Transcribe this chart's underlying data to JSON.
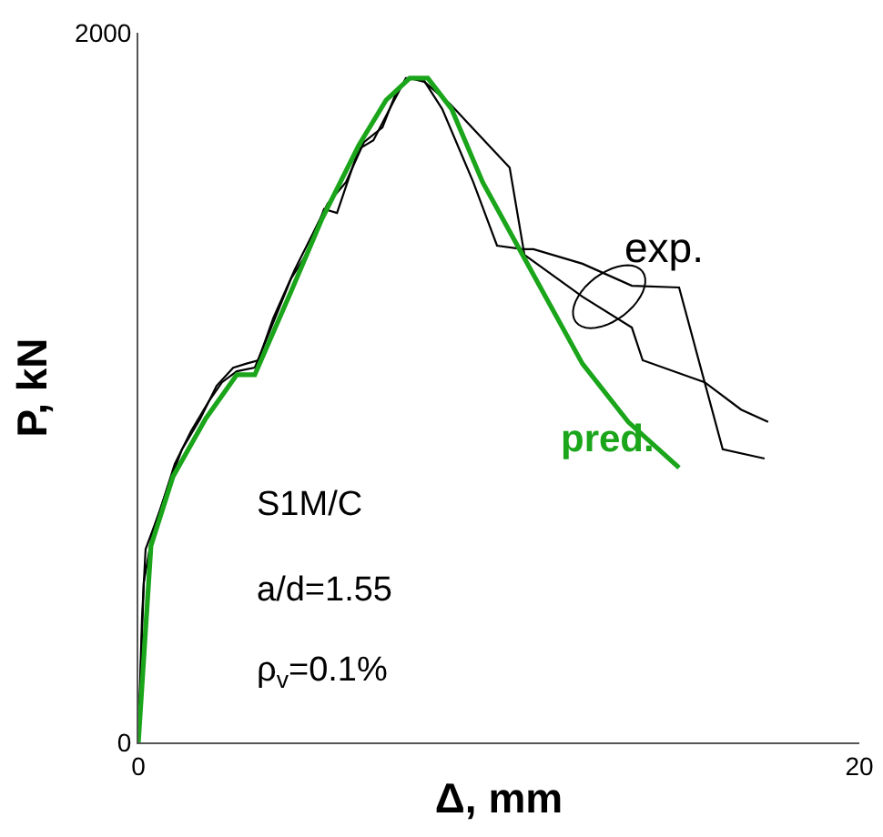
{
  "chart_data": {
    "type": "line",
    "xlabel": "Δ, mm",
    "ylabel": "P, kN",
    "xlim": [
      0,
      20
    ],
    "ylim": [
      0,
      2000
    ],
    "xticks": [
      0,
      20
    ],
    "yticks": [
      0,
      2000
    ],
    "legend": false,
    "marker": "none",
    "line_style": "solid",
    "series": [
      {
        "color": "#000000",
        "x": [
          0,
          0.1,
          0.2,
          0.61,
          1.01,
          1.46,
          1.97,
          2.32,
          2.73,
          3.23,
          3.48,
          4.24,
          4.75,
          5.15,
          5.51,
          6.11,
          6.52,
          7.02,
          7.42,
          7.88,
          8.43,
          9.29,
          9.95,
          10.66,
          10.96,
          12.32,
          13.69,
          15.0,
          16.21,
          17.37
        ],
        "values": [
          0,
          349,
          544,
          656,
          785,
          877,
          964,
          1015,
          1046,
          1056,
          1118,
          1308,
          1390,
          1503,
          1492,
          1672,
          1697,
          1795,
          1872,
          1872,
          1785,
          1579,
          1400,
          1390,
          1390,
          1349,
          1287,
          1282,
          826,
          800
        ]
      },
      {
        "color": "#000000",
        "x": [
          0,
          0.15,
          0.4,
          0.81,
          1.21,
          1.72,
          2.17,
          2.63,
          2.98,
          3.33,
          3.74,
          4.34,
          4.85,
          5.25,
          5.76,
          6.26,
          6.77,
          7.17,
          7.53,
          7.93,
          8.64,
          10.3,
          10.71,
          12.32,
          13.69,
          13.99,
          15.71,
          16.72,
          17.47
        ],
        "values": [
          0,
          451,
          595,
          718,
          826,
          913,
          1005,
          1056,
          1067,
          1077,
          1195,
          1333,
          1436,
          1518,
          1579,
          1692,
          1733,
          1836,
          1872,
          1862,
          1800,
          1620,
          1374,
          1256,
          1169,
          1077,
          1015,
          938,
          903
        ]
      },
      {
        "name": "pred.",
        "color": "#1aa51a",
        "x": [
          0,
          0.35,
          0.96,
          1.87,
          2.73,
          3.23,
          4.24,
          5.1,
          6.11,
          6.87,
          7.53,
          8.03,
          8.69,
          9.55,
          10.71,
          12.32,
          13.59,
          15.0
        ],
        "values": [
          0,
          554,
          749,
          913,
          1036,
          1036,
          1272,
          1477,
          1682,
          1810,
          1872,
          1872,
          1785,
          1579,
          1364,
          1067,
          903,
          774
        ]
      }
    ],
    "annotations": [
      "exp.",
      "S1M/C",
      "a/d=1.55",
      "ρ$_{v}$=0.1%"
    ]
  }
}
